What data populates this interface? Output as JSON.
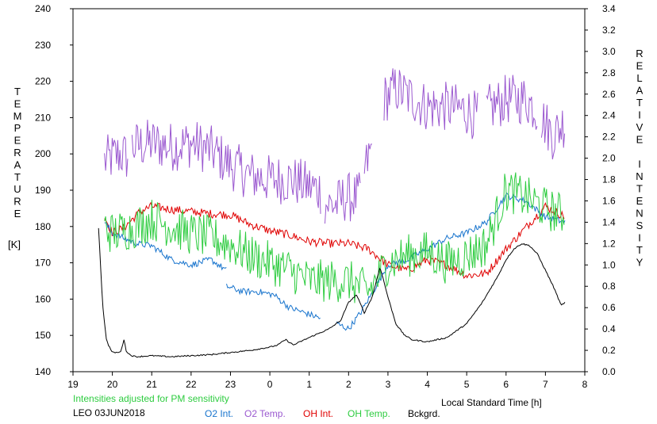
{
  "chart_data": {
    "type": "line",
    "note": "Intensities adjusted for PM sensitivity",
    "station_date": "LEO 03JUN2018",
    "xlabel": "Local Standard Time [h]",
    "ylabel_left_letters": [
      "T",
      "E",
      "M",
      "P",
      "E",
      "R",
      "A",
      "T",
      "U",
      "R",
      "E"
    ],
    "ylabel_left_unit": "[K]",
    "ylabel_right_letters": [
      "R",
      "E",
      "L",
      "A",
      "T",
      "I",
      "V",
      "E",
      "",
      "I",
      "N",
      "T",
      "E",
      "N",
      "S",
      "I",
      "T",
      "Y"
    ],
    "x_range": [
      19,
      32
    ],
    "x_tick_values": [
      19,
      20,
      21,
      22,
      23,
      24,
      25,
      26,
      27,
      28,
      29,
      30,
      31,
      32
    ],
    "x_tick_labels": [
      "19",
      "20",
      "21",
      "22",
      "23",
      "0",
      "1",
      "2",
      "3",
      "4",
      "5",
      "6",
      "7",
      "8"
    ],
    "ylim_left": [
      140,
      240
    ],
    "y_left_ticks": [
      "140",
      "150",
      "160",
      "170",
      "180",
      "190",
      "200",
      "210",
      "220",
      "230",
      "240"
    ],
    "ylim_right": [
      0.0,
      3.4
    ],
    "y_right_ticks": [
      "0.0",
      "0.2",
      "0.4",
      "0.6",
      "0.8",
      "1.0",
      "1.2",
      "1.4",
      "1.6",
      "1.8",
      "2.0",
      "2.2",
      "2.4",
      "2.6",
      "2.8",
      "3.0",
      "3.2",
      "3.4"
    ],
    "legend": [
      {
        "label": "O2 Int.",
        "color": "#1874cd"
      },
      {
        "label": "O2 Temp.",
        "color": "#9b59d0"
      },
      {
        "label": "OH Int.",
        "color": "#e00000"
      },
      {
        "label": "OH Temp.",
        "color": "#2ecc40"
      },
      {
        "label": "Bckgrd.",
        "color": "#000000"
      }
    ],
    "series": [
      {
        "name": "O2 Temp.",
        "axis": "left",
        "color": "#9b59d0",
        "noise": 7,
        "segments": [
          {
            "x": [
              19.8,
              20.2,
              20.4
            ],
            "y": [
              198,
              200,
              199
            ]
          },
          {
            "x": [
              20.5,
              21.0,
              21.5,
              22.0,
              22.5,
              23.0,
              23.5,
              24.0,
              24.5,
              25.0,
              25.3
            ],
            "y": [
              202,
              203,
              202,
              203,
              201,
              197,
              194,
              193,
              193,
              191,
              190
            ]
          },
          {
            "x": [
              25.4,
              25.7,
              25.9,
              26.3
            ],
            "y": [
              186,
              186,
              188,
              188
            ]
          },
          {
            "x": [
              26.4,
              26.6
            ],
            "y": [
              195,
              202
            ]
          },
          {
            "x": [
              26.9,
              27.2,
              27.5,
              28.0,
              28.5,
              29.0,
              29.3
            ],
            "y": [
              215,
              218,
              216,
              213,
              213,
              212,
              210
            ]
          },
          {
            "x": [
              29.5,
              30.0,
              30.5,
              30.8
            ],
            "y": [
              212,
              215,
              215,
              212
            ]
          },
          {
            "x": [
              30.9,
              31.2,
              31.5
            ],
            "y": [
              210,
              205,
              209
            ]
          }
        ]
      },
      {
        "name": "OH Int.",
        "axis": "right",
        "color": "#e00000",
        "noise": 0.04,
        "segments": [
          {
            "x": [
              19.8,
              20.0,
              20.3,
              20.7,
              21.0,
              21.5,
              22.0,
              22.5,
              23.0,
              23.5,
              24.0,
              24.5,
              25.0,
              25.5,
              26.0,
              26.5,
              27.0,
              27.5,
              28.0,
              28.5,
              29.0,
              29.5,
              30.0,
              30.5,
              31.0,
              31.5
            ],
            "y": [
              1.45,
              1.3,
              1.35,
              1.5,
              1.55,
              1.52,
              1.5,
              1.48,
              1.47,
              1.38,
              1.32,
              1.28,
              1.22,
              1.2,
              1.2,
              1.15,
              1.0,
              0.95,
              1.05,
              1.0,
              0.9,
              0.92,
              1.15,
              1.35,
              1.55,
              1.45
            ]
          }
        ]
      },
      {
        "name": "O2 Int.",
        "axis": "right",
        "color": "#1874cd",
        "noise": 0.03,
        "segments": [
          {
            "x": [
              19.8,
              20.0,
              20.3,
              20.6
            ],
            "y": [
              1.4,
              1.3,
              1.25,
              1.2
            ]
          },
          {
            "x": [
              20.6,
              21.0,
              21.5,
              22.0,
              22.5,
              22.9
            ],
            "y": [
              1.2,
              1.18,
              1.05,
              1.0,
              1.05,
              0.95
            ]
          },
          {
            "x": [
              22.9,
              23.3,
              23.7,
              24.1,
              24.5,
              24.9,
              25.3
            ],
            "y": [
              0.8,
              0.75,
              0.75,
              0.72,
              0.6,
              0.55,
              0.5
            ]
          },
          {
            "x": [
              25.7,
              26.0,
              26.3,
              26.7,
              27.0,
              27.5,
              28.0,
              28.5,
              29.0,
              29.5,
              30.0,
              30.5,
              31.0,
              31.5
            ],
            "y": [
              0.45,
              0.4,
              0.55,
              0.8,
              1.0,
              1.05,
              1.15,
              1.25,
              1.3,
              1.4,
              1.65,
              1.6,
              1.45,
              1.4
            ]
          }
        ]
      },
      {
        "name": "OH Temp.",
        "axis": "left",
        "color": "#2ecc40",
        "noise": 6,
        "segments": [
          {
            "x": [
              19.8,
              20.0,
              20.3,
              20.6,
              21.0,
              21.5,
              22.0,
              22.5,
              23.0,
              23.5,
              24.0,
              24.5,
              25.0,
              25.5,
              26.0,
              26.5,
              27.0,
              27.5,
              28.0,
              28.5,
              29.0,
              29.5,
              30.0,
              30.5,
              31.0,
              31.5
            ],
            "y": [
              180,
              178,
              179,
              180,
              182,
              180,
              178,
              177,
              175,
              172,
              170,
              168,
              165,
              165,
              165,
              162,
              170,
              172,
              173,
              170,
              172,
              175,
              190,
              188,
              185,
              183
            ]
          }
        ]
      },
      {
        "name": "Bckgrd.",
        "axis": "right",
        "color": "#000000",
        "noise": 0.006,
        "segments": [
          {
            "x": [
              19.65,
              19.7,
              19.75,
              19.8,
              19.85,
              19.9,
              20.0,
              20.2,
              20.3,
              20.35,
              20.4,
              20.5,
              20.6,
              21.0,
              21.5,
              22.0,
              22.5,
              23.0,
              23.5,
              24.0,
              24.2,
              24.4,
              24.6,
              25.0,
              25.5,
              25.8,
              26.0,
              26.2,
              26.4,
              26.6,
              26.8,
              27.0,
              27.2,
              27.4,
              27.6,
              28.0,
              28.5,
              29.0,
              29.4,
              29.8,
              30.0,
              30.2,
              30.4,
              30.6,
              30.8,
              31.0,
              31.2,
              31.4,
              31.5
            ],
            "y": [
              1.35,
              1.0,
              0.65,
              0.45,
              0.3,
              0.25,
              0.18,
              0.18,
              0.3,
              0.2,
              0.17,
              0.15,
              0.14,
              0.15,
              0.14,
              0.15,
              0.16,
              0.18,
              0.2,
              0.23,
              0.25,
              0.3,
              0.25,
              0.32,
              0.4,
              0.48,
              0.65,
              0.72,
              0.55,
              0.7,
              0.98,
              0.7,
              0.45,
              0.35,
              0.3,
              0.28,
              0.32,
              0.45,
              0.65,
              0.9,
              1.05,
              1.15,
              1.2,
              1.18,
              1.1,
              0.95,
              0.8,
              0.62,
              0.65
            ]
          }
        ]
      }
    ]
  }
}
